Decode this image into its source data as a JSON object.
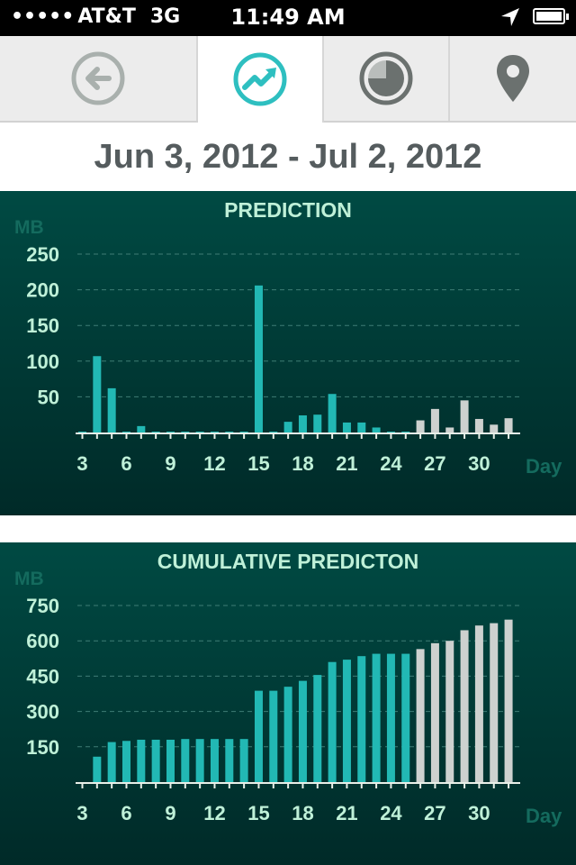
{
  "status_bar": {
    "signal_dots": "•••••",
    "carrier": "AT&T",
    "network": "3G",
    "time": "11:49 AM",
    "location_icon": "location-arrow-icon",
    "battery_icon": "battery-icon"
  },
  "tabs": [
    {
      "name": "back",
      "icon": "back-arrow-icon",
      "active": false
    },
    {
      "name": "trend",
      "icon": "trend-chart-icon",
      "active": true
    },
    {
      "name": "pie",
      "icon": "pie-chart-icon",
      "active": false
    },
    {
      "name": "location",
      "icon": "map-pin-icon",
      "active": false
    }
  ],
  "date_range": "Jun 3, 2012 - Jul 2, 2012",
  "colors": {
    "actual": "#22b8b4",
    "predicted": "#cdd1cf",
    "panel_bg": "#00403a",
    "label": "#bff0d8",
    "unit": "#146b5e",
    "active_icon": "#2ebfc0"
  },
  "chart_data": [
    {
      "type": "bar",
      "title": "PREDICTION",
      "ylabel": "MB",
      "xlabel": "Day",
      "ylim": [
        0,
        250
      ],
      "yticks": [
        50,
        100,
        150,
        200,
        250
      ],
      "xticks": [
        3,
        6,
        9,
        12,
        15,
        18,
        21,
        24,
        27,
        30
      ],
      "x": [
        3,
        4,
        5,
        6,
        7,
        8,
        9,
        10,
        11,
        12,
        13,
        14,
        15,
        16,
        17,
        18,
        19,
        20,
        21,
        22,
        23,
        24,
        25,
        26,
        27,
        28,
        29,
        30,
        31,
        32
      ],
      "series": [
        {
          "kind": "actual",
          "values": [
            1,
            107,
            62,
            1,
            9,
            1,
            0,
            0,
            0,
            0,
            0,
            0,
            206,
            0,
            15,
            24,
            25,
            54,
            14,
            14,
            7,
            0,
            0,
            null,
            null,
            null,
            null,
            null,
            null,
            null
          ]
        },
        {
          "kind": "predicted",
          "values": [
            null,
            null,
            null,
            null,
            null,
            null,
            null,
            null,
            null,
            null,
            null,
            null,
            null,
            null,
            null,
            null,
            null,
            null,
            null,
            null,
            null,
            null,
            null,
            17,
            33,
            7,
            45,
            19,
            11,
            20
          ]
        }
      ]
    },
    {
      "type": "bar",
      "title": "CUMULATIVE PREDICTON",
      "ylabel": "MB",
      "xlabel": "Day",
      "ylim": [
        0,
        750
      ],
      "yticks": [
        150,
        300,
        450,
        600,
        750
      ],
      "xticks": [
        3,
        6,
        9,
        12,
        15,
        18,
        21,
        24,
        27,
        30
      ],
      "x": [
        4,
        5,
        6,
        7,
        8,
        9,
        10,
        11,
        12,
        13,
        14,
        15,
        16,
        17,
        18,
        19,
        20,
        21,
        22,
        23,
        24,
        25,
        26,
        27,
        28,
        29,
        30,
        31,
        32
      ],
      "series": [
        {
          "kind": "actual",
          "values": [
            108,
            170,
            175,
            180,
            180,
            180,
            183,
            183,
            183,
            183,
            183,
            388,
            388,
            405,
            430,
            455,
            510,
            520,
            535,
            545,
            545,
            545,
            null,
            null,
            null,
            null,
            null,
            null,
            null
          ]
        },
        {
          "kind": "predicted",
          "values": [
            null,
            null,
            null,
            null,
            null,
            null,
            null,
            null,
            null,
            null,
            null,
            null,
            null,
            null,
            null,
            null,
            null,
            null,
            null,
            null,
            null,
            null,
            565,
            590,
            600,
            645,
            665,
            675,
            690
          ]
        }
      ]
    }
  ]
}
